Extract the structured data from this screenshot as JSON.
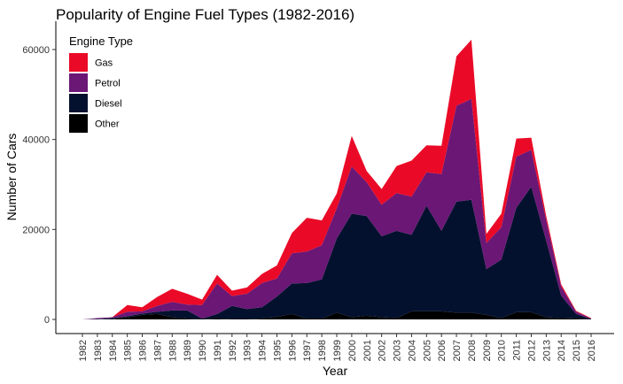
{
  "chart_data": {
    "type": "area",
    "stacked": true,
    "title": "Popularity of Engine Fuel Types (1982-2016)",
    "xlabel": "Year",
    "ylabel": "Number of Cars",
    "ylim": [
      0,
      65000
    ],
    "y_ticks": [
      0,
      20000,
      40000,
      60000
    ],
    "grid": false,
    "legend": {
      "title": "Engine Type",
      "placement": "top-left"
    },
    "x": [
      1982,
      1983,
      1984,
      1985,
      1986,
      1987,
      1988,
      1989,
      1990,
      1991,
      1992,
      1993,
      1994,
      1995,
      1996,
      1997,
      1998,
      1999,
      2000,
      2001,
      2002,
      2003,
      2004,
      2005,
      2006,
      2007,
      2008,
      2009,
      2010,
      2011,
      2012,
      2013,
      2014,
      2015,
      2016
    ],
    "series": [
      {
        "name": "Other",
        "color": "#000000",
        "values": [
          0,
          0,
          100,
          500,
          1000,
          1200,
          500,
          200,
          100,
          200,
          100,
          100,
          200,
          600,
          1200,
          200,
          200,
          1500,
          500,
          800,
          500,
          300,
          1800,
          1800,
          1800,
          1500,
          1500,
          1000,
          300,
          1600,
          1600,
          500,
          300,
          200,
          100
        ]
      },
      {
        "name": "Diesel",
        "color": "#03112e",
        "values": [
          0,
          100,
          200,
          200,
          300,
          500,
          1500,
          1800,
          100,
          1000,
          2900,
          2200,
          2500,
          4500,
          6800,
          7900,
          8700,
          16500,
          23000,
          22200,
          18000,
          19400,
          17000,
          23500,
          17900,
          24700,
          25100,
          10200,
          13000,
          23200,
          27900,
          17000,
          5000,
          1000,
          0
        ]
      },
      {
        "name": "Petrol",
        "color": "#6b1776",
        "values": [
          0,
          200,
          200,
          1000,
          500,
          1300,
          1900,
          1300,
          3000,
          6800,
          2200,
          3400,
          5400,
          4000,
          6700,
          7000,
          7600,
          6700,
          10500,
          7500,
          7000,
          8400,
          8500,
          7400,
          12600,
          21300,
          22400,
          5800,
          7200,
          11400,
          8200,
          4500,
          2000,
          500,
          100
        ]
      },
      {
        "name": "Gas",
        "color": "#ea0a27",
        "values": [
          0,
          0,
          0,
          1500,
          900,
          2000,
          2900,
          2400,
          1200,
          1900,
          1200,
          1400,
          2000,
          2900,
          4500,
          7500,
          5500,
          3300,
          6800,
          2500,
          3500,
          6000,
          8000,
          6000,
          6300,
          11000,
          13200,
          2000,
          3000,
          4000,
          2700,
          1000,
          500,
          200,
          100
        ]
      }
    ]
  }
}
